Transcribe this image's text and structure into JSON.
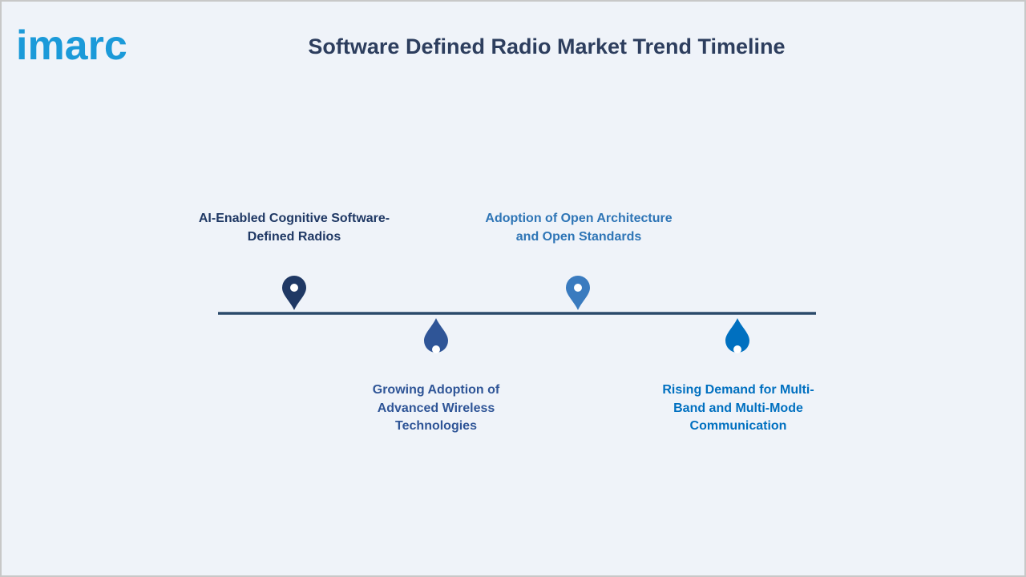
{
  "logo": "imarc",
  "title": "Software Defined Radio Market Trend Timeline",
  "items": [
    {
      "lines": [
        "AI-Enabled Cognitive Software-",
        "Defined Radios"
      ]
    },
    {
      "lines": [
        "Growing Adoption of",
        "Advanced Wireless",
        "Technologies"
      ]
    },
    {
      "lines": [
        "Adoption of Open Architecture",
        "and Open Standards"
      ]
    },
    {
      "lines": [
        "Rising Demand for Multi-",
        "Band and Multi-Mode",
        "Communication"
      ]
    }
  ]
}
